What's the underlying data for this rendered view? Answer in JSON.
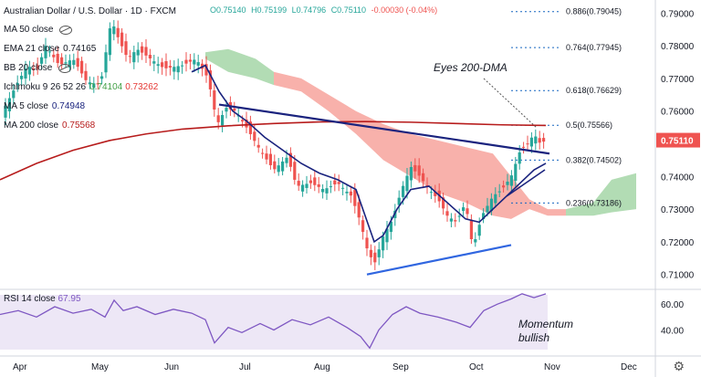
{
  "header": {
    "symbol": "Australian Dollar / U.S. Dollar · 1D · FXCM",
    "open": "O0.75140",
    "high": "H0.75199",
    "low": "L0.74796",
    "close": "C0.75110",
    "change": "-0.00030 (-0.04%)"
  },
  "legend": [
    {
      "label": "MA 50 close",
      "values": [],
      "hidden": true
    },
    {
      "label": "EMA 21 close",
      "values": [
        "0.74165"
      ],
      "color": "#131722"
    },
    {
      "label": "BB 20 close",
      "values": [],
      "hidden": true
    },
    {
      "label": "Ichimoku 9 26 52 26",
      "values": [
        "0.74104",
        "0.73262"
      ],
      "colors": [
        "#43a047",
        "#e53935"
      ]
    },
    {
      "label": "MA 5 close",
      "values": [
        "0.74948"
      ],
      "color": "#1a237e"
    },
    {
      "label": "MA 200 close",
      "values": [
        "0.75568"
      ],
      "color": "#b71c1c"
    }
  ],
  "rsi_legend": {
    "label": "RSI 14 close",
    "value": "67.95"
  },
  "annotations": {
    "eyes": "Eyes 200-DMA",
    "momentum_1": "Momentum",
    "momentum_2": "bullish"
  },
  "colors": {
    "up": "#26a69a",
    "down": "#ef5350",
    "ma200": "#b71c1c",
    "ma5": "#1a237e",
    "trend": "#1a237e",
    "support": "#3066e0",
    "rsi": "#7e57c2",
    "fib": "#1565c0",
    "cloud_red": "#f7a39c",
    "cloud_green": "#a5d6a7",
    "price_tag": "#ef5350"
  },
  "chart_data": {
    "type": "candlestick",
    "title": "Australian Dollar / U.S. Dollar · 1D · FXCM",
    "ylim": [
      0.706,
      0.794
    ],
    "y_ticks": [
      "0.79000",
      "0.78000",
      "0.77000",
      "0.76000",
      "0.75000",
      "0.74000",
      "0.73000",
      "0.72000",
      "0.71000"
    ],
    "x_ticks": [
      "Apr",
      "May",
      "Jun",
      "Jul",
      "Aug",
      "Sep",
      "Oct",
      "Nov",
      "Dec"
    ],
    "last_price": "0.75110",
    "fibonacci": [
      {
        "label": "0.886(0.79045)",
        "price": 0.79045
      },
      {
        "label": "0.764(0.77945)",
        "price": 0.77945
      },
      {
        "label": "0.618(0.76629)",
        "price": 0.76629
      },
      {
        "label": "0.5(0.75566)",
        "price": 0.75566
      },
      {
        "label": "0.382(0.74502)",
        "price": 0.74502
      },
      {
        "label": "0.236(0.73186)",
        "price": 0.73186
      }
    ],
    "price_path": [
      [
        3,
        0.76
      ],
      [
        18,
        0.768
      ],
      [
        30,
        0.774
      ],
      [
        40,
        0.772
      ],
      [
        50,
        0.78
      ],
      [
        65,
        0.774
      ],
      [
        80,
        0.776
      ],
      [
        95,
        0.769
      ],
      [
        110,
        0.768
      ],
      [
        122,
        0.788
      ],
      [
        130,
        0.782
      ],
      [
        140,
        0.776
      ],
      [
        150,
        0.779
      ],
      [
        165,
        0.776
      ],
      [
        180,
        0.773
      ],
      [
        200,
        0.774
      ],
      [
        215,
        0.776
      ],
      [
        228,
        0.77
      ],
      [
        238,
        0.756
      ],
      [
        248,
        0.761
      ],
      [
        258,
        0.76
      ],
      [
        270,
        0.755
      ],
      [
        285,
        0.748
      ],
      [
        300,
        0.742
      ],
      [
        315,
        0.746
      ],
      [
        325,
        0.737
      ],
      [
        340,
        0.738
      ],
      [
        355,
        0.736
      ],
      [
        370,
        0.738
      ],
      [
        385,
        0.734
      ],
      [
        395,
        0.726
      ],
      [
        402,
        0.718
      ],
      [
        410,
        0.713
      ],
      [
        420,
        0.722
      ],
      [
        430,
        0.727
      ],
      [
        440,
        0.736
      ],
      [
        450,
        0.743
      ],
      [
        460,
        0.74
      ],
      [
        470,
        0.736
      ],
      [
        480,
        0.733
      ],
      [
        490,
        0.728
      ],
      [
        500,
        0.726
      ],
      [
        510,
        0.732
      ],
      [
        518,
        0.718
      ],
      [
        528,
        0.728
      ],
      [
        540,
        0.734
      ],
      [
        550,
        0.736
      ],
      [
        560,
        0.74
      ],
      [
        570,
        0.748
      ],
      [
        578,
        0.75
      ],
      [
        585,
        0.753
      ],
      [
        592,
        0.75
      ],
      [
        598,
        0.7511
      ]
    ],
    "ma200_path": [
      [
        0,
        0.739
      ],
      [
        40,
        0.744
      ],
      [
        80,
        0.748
      ],
      [
        120,
        0.751
      ],
      [
        160,
        0.753
      ],
      [
        200,
        0.7545
      ],
      [
        250,
        0.7555
      ],
      [
        300,
        0.7562
      ],
      [
        350,
        0.7567
      ],
      [
        400,
        0.7568
      ],
      [
        450,
        0.7566
      ],
      [
        500,
        0.7562
      ],
      [
        550,
        0.7558
      ],
      [
        598,
        0.7556
      ]
    ],
    "ma5_path": [
      [
        210,
        0.772
      ],
      [
        225,
        0.774
      ],
      [
        240,
        0.766
      ],
      [
        255,
        0.76
      ],
      [
        270,
        0.757
      ],
      [
        290,
        0.752
      ],
      [
        310,
        0.748
      ],
      [
        330,
        0.744
      ],
      [
        350,
        0.741
      ],
      [
        370,
        0.739
      ],
      [
        390,
        0.736
      ],
      [
        400,
        0.728
      ],
      [
        410,
        0.72
      ],
      [
        420,
        0.722
      ],
      [
        435,
        0.73
      ],
      [
        450,
        0.736
      ],
      [
        470,
        0.737
      ],
      [
        490,
        0.732
      ],
      [
        510,
        0.727
      ],
      [
        525,
        0.726
      ],
      [
        540,
        0.73
      ],
      [
        555,
        0.734
      ],
      [
        570,
        0.738
      ],
      [
        585,
        0.742
      ],
      [
        598,
        0.744
      ]
    ],
    "resistance_line": [
      [
        240,
        0.762
      ],
      [
        602,
        0.747
      ]
    ],
    "support_line": [
      [
        402,
        0.71
      ],
      [
        560,
        0.719
      ]
    ],
    "cloud_red": {
      "top": [
        [
          300,
          0.772
        ],
        [
          330,
          0.77
        ],
        [
          360,
          0.765
        ],
        [
          390,
          0.76
        ],
        [
          420,
          0.756
        ],
        [
          450,
          0.753
        ],
        [
          480,
          0.751
        ],
        [
          510,
          0.749
        ],
        [
          540,
          0.747
        ],
        [
          560,
          0.74
        ],
        [
          580,
          0.733
        ],
        [
          600,
          0.73
        ],
        [
          620,
          0.73
        ]
      ],
      "bottom": [
        [
          300,
          0.768
        ],
        [
          330,
          0.766
        ],
        [
          360,
          0.76
        ],
        [
          390,
          0.753
        ],
        [
          420,
          0.745
        ],
        [
          450,
          0.74
        ],
        [
          480,
          0.735
        ],
        [
          510,
          0.732
        ],
        [
          540,
          0.728
        ],
        [
          560,
          0.727
        ],
        [
          580,
          0.73
        ],
        [
          600,
          0.728
        ],
        [
          620,
          0.728
        ]
      ]
    },
    "cloud_green": {
      "top": [
        [
          225,
          0.778
        ],
        [
          250,
          0.779
        ],
        [
          280,
          0.776
        ],
        [
          300,
          0.772
        ]
      ],
      "bottom": [
        [
          225,
          0.776
        ],
        [
          250,
          0.772
        ],
        [
          280,
          0.77
        ],
        [
          300,
          0.768
        ]
      ]
    },
    "cloud_green_2": {
      "top": [
        [
          620,
          0.73
        ],
        [
          650,
          0.732
        ],
        [
          670,
          0.739
        ],
        [
          697,
          0.741
        ]
      ],
      "bottom": [
        [
          620,
          0.728
        ],
        [
          650,
          0.728
        ],
        [
          670,
          0.729
        ],
        [
          697,
          0.73
        ]
      ]
    },
    "rsi": {
      "ylim": [
        22,
        70
      ],
      "y_ticks": [
        "60.00",
        "40.00"
      ],
      "values": [
        [
          0,
          52
        ],
        [
          20,
          55
        ],
        [
          40,
          50
        ],
        [
          60,
          58
        ],
        [
          80,
          53
        ],
        [
          100,
          56
        ],
        [
          115,
          50
        ],
        [
          125,
          63
        ],
        [
          135,
          55
        ],
        [
          150,
          58
        ],
        [
          170,
          52
        ],
        [
          190,
          56
        ],
        [
          210,
          53
        ],
        [
          225,
          48
        ],
        [
          235,
          30
        ],
        [
          250,
          42
        ],
        [
          265,
          38
        ],
        [
          285,
          45
        ],
        [
          300,
          40
        ],
        [
          320,
          48
        ],
        [
          340,
          44
        ],
        [
          360,
          50
        ],
        [
          380,
          42
        ],
        [
          395,
          35
        ],
        [
          405,
          26
        ],
        [
          415,
          40
        ],
        [
          430,
          52
        ],
        [
          445,
          58
        ],
        [
          460,
          53
        ],
        [
          480,
          50
        ],
        [
          500,
          46
        ],
        [
          515,
          42
        ],
        [
          530,
          55
        ],
        [
          545,
          60
        ],
        [
          560,
          64
        ],
        [
          572,
          68
        ],
        [
          585,
          65
        ],
        [
          598,
          67.95
        ]
      ]
    }
  }
}
